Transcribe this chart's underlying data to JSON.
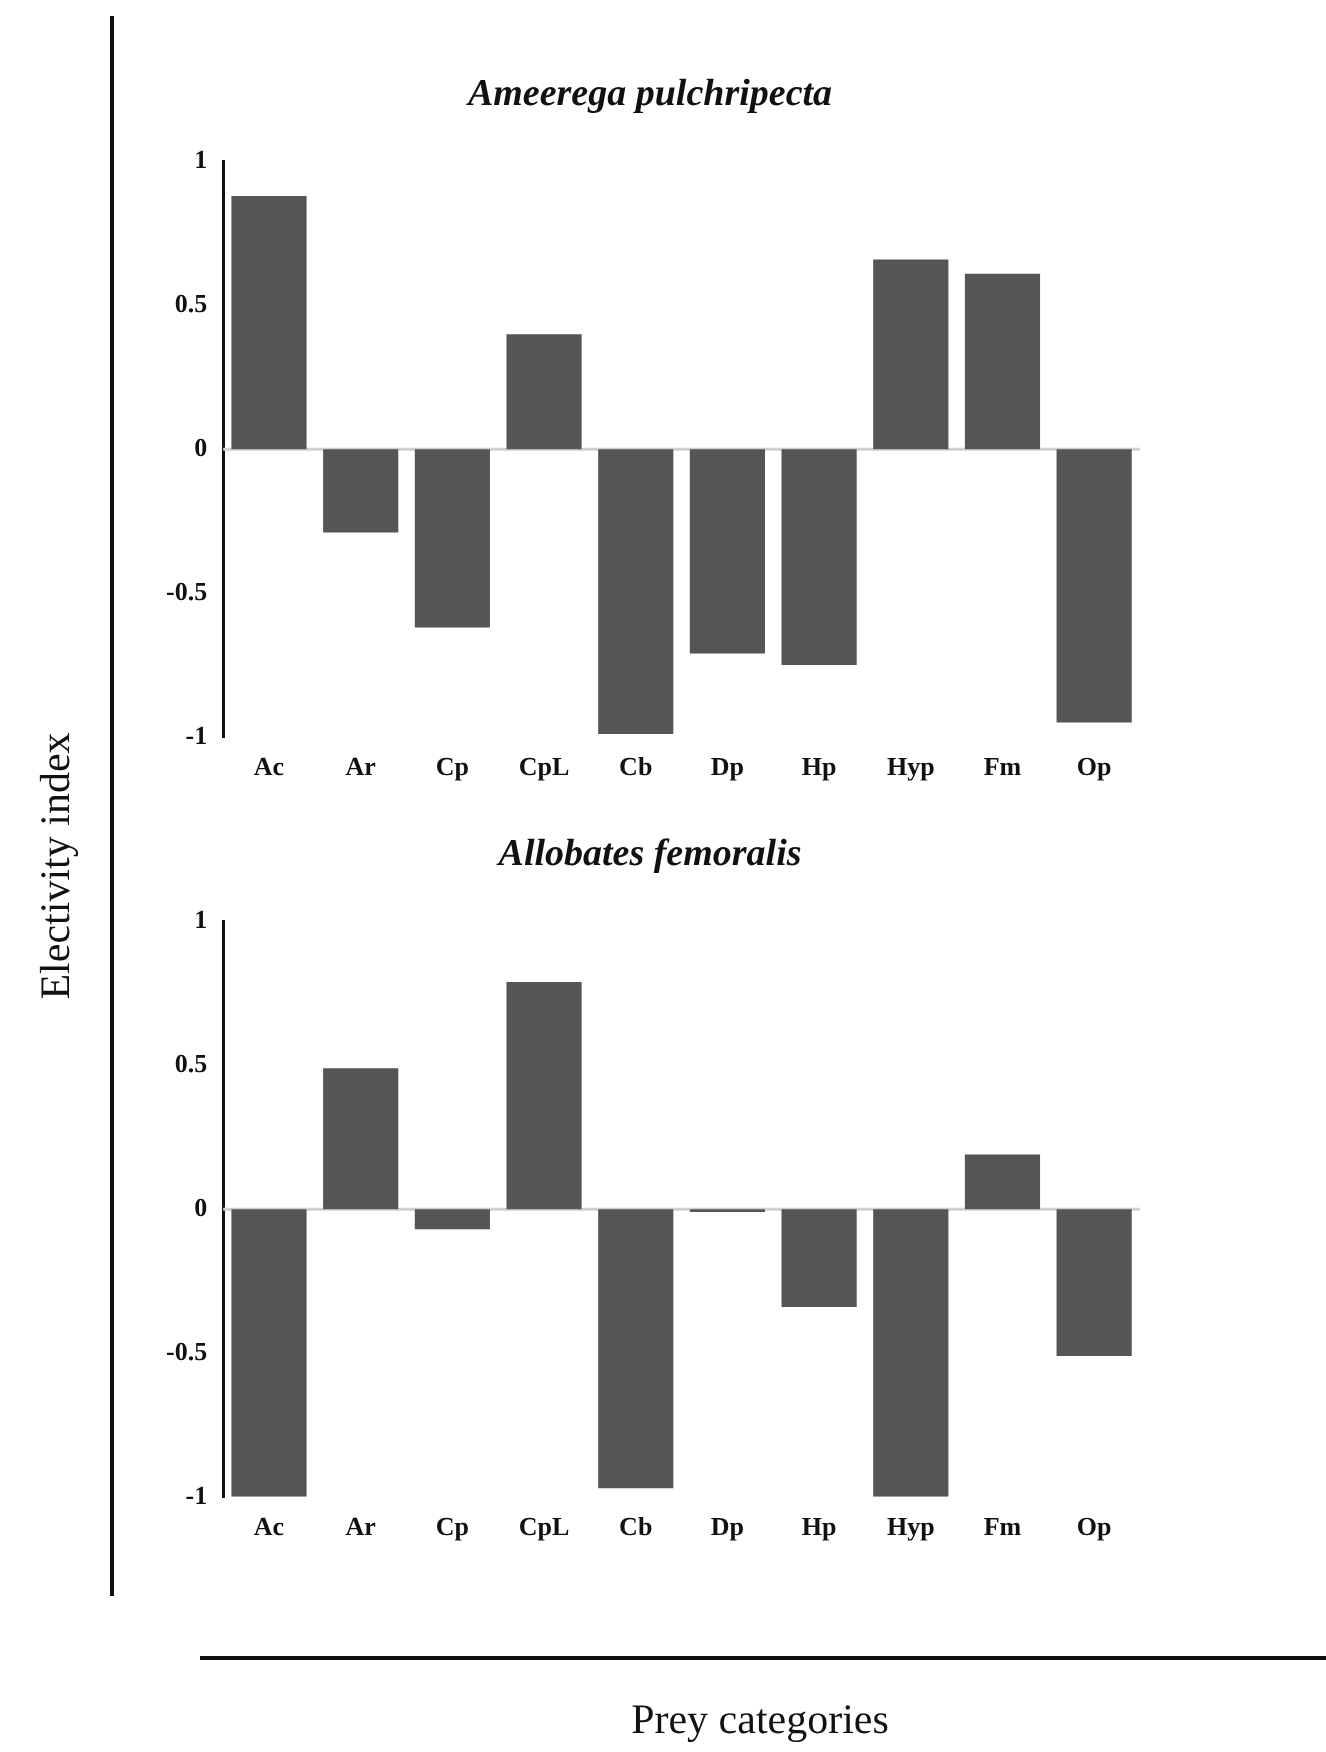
{
  "chart_data": [
    {
      "type": "bar",
      "title": "Ameerega pulchripecta",
      "ylabel": "Electivity index",
      "categories": [
        "Ac",
        "Ar",
        "Cp",
        "CpL",
        "Cb",
        "Dp",
        "Hp",
        "Hyp",
        "Fm",
        "Op"
      ],
      "values": [
        0.88,
        -0.29,
        -0.62,
        0.4,
        -0.99,
        -0.71,
        -0.75,
        0.66,
        0.61,
        -0.95
      ],
      "color": "#555555",
      "ylim": [
        -1,
        1
      ],
      "yticks": [
        -1,
        -0.5,
        0,
        0.5,
        1
      ],
      "grid": false,
      "legend": false,
      "ref_lines": [
        {
          "axis": "y",
          "value": 0,
          "color": "#d0d0d0"
        }
      ]
    },
    {
      "type": "bar",
      "title": "Allobates femoralis",
      "xlabel": "Prey categories",
      "categories": [
        "Ac",
        "Ar",
        "Cp",
        "CpL",
        "Cb",
        "Dp",
        "Hp",
        "Hyp",
        "Fm",
        "Op"
      ],
      "values": [
        -1,
        0.49,
        -0.07,
        0.79,
        -0.97,
        -0.01,
        -0.34,
        -1,
        0.19,
        -0.51
      ],
      "color": "#555555",
      "ylim": [
        -1,
        1
      ],
      "yticks": [
        -1,
        -0.5,
        0,
        0.5,
        1
      ],
      "grid": false,
      "legend": false,
      "ref_lines": [
        {
          "axis": "y",
          "value": 0,
          "color": "#d0d0d0"
        }
      ]
    }
  ]
}
